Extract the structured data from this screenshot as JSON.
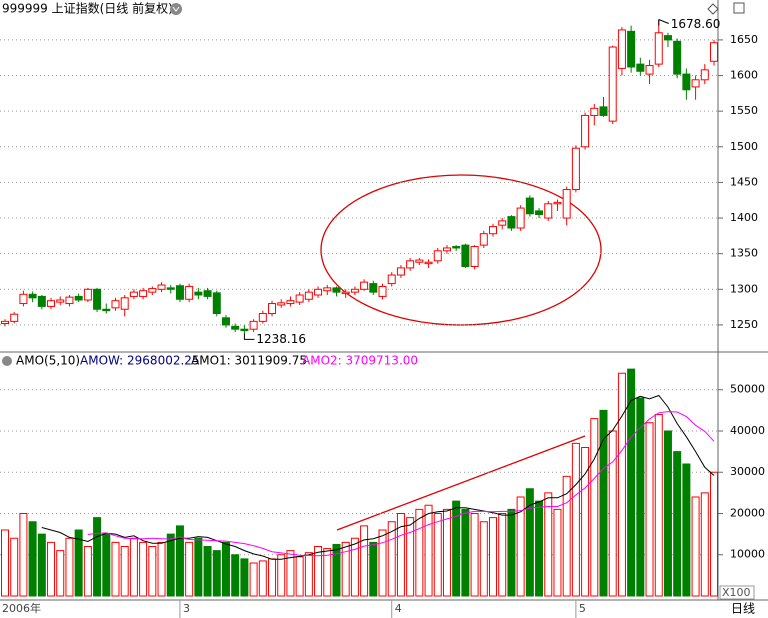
{
  "chart_data": [
    {
      "type": "candlestick",
      "title": "999999 上证指数(日线 前复权)",
      "categories": [
        "2006年",
        null,
        null,
        null,
        null,
        null,
        null,
        null,
        null,
        null,
        null,
        null,
        null,
        null,
        null,
        null,
        null,
        null,
        null,
        "3",
        null,
        null,
        null,
        null,
        null,
        null,
        null,
        null,
        null,
        null,
        null,
        null,
        null,
        null,
        null,
        null,
        null,
        null,
        null,
        null,
        null,
        null,
        "4",
        null,
        null,
        null,
        null,
        null,
        null,
        null,
        null,
        null,
        null,
        null,
        null,
        null,
        null,
        null,
        null,
        null,
        null,
        null,
        "5",
        null,
        null,
        null,
        null,
        null,
        null,
        null,
        null,
        null,
        null,
        null,
        null,
        null,
        null,
        null
      ],
      "ohlc": [
        [
          1252,
          1258,
          1248,
          1255
        ],
        [
          1255,
          1268,
          1252,
          1265
        ],
        [
          1280,
          1298,
          1276,
          1293
        ],
        [
          1293,
          1297,
          1282,
          1288
        ],
        [
          1290,
          1292,
          1272,
          1276
        ],
        [
          1276,
          1288,
          1272,
          1284
        ],
        [
          1282,
          1290,
          1278,
          1285
        ],
        [
          1280,
          1292,
          1276,
          1289
        ],
        [
          1290,
          1294,
          1282,
          1285
        ],
        [
          1285,
          1302,
          1282,
          1300
        ],
        [
          1300,
          1302,
          1268,
          1272
        ],
        [
          1272,
          1280,
          1266,
          1270
        ],
        [
          1274,
          1288,
          1270,
          1284
        ],
        [
          1272,
          1292,
          1262,
          1288
        ],
        [
          1290,
          1300,
          1286,
          1296
        ],
        [
          1290,
          1302,
          1286,
          1298
        ],
        [
          1296,
          1304,
          1292,
          1301
        ],
        [
          1300,
          1310,
          1296,
          1306
        ],
        [
          1302,
          1306,
          1294,
          1300
        ],
        [
          1305,
          1308,
          1282,
          1286
        ],
        [
          1286,
          1308,
          1282,
          1304
        ],
        [
          1296,
          1302,
          1286,
          1292
        ],
        [
          1298,
          1302,
          1286,
          1290
        ],
        [
          1295,
          1298,
          1262,
          1266
        ],
        [
          1260,
          1264,
          1246,
          1250
        ],
        [
          1248,
          1252,
          1240,
          1244
        ],
        [
          1244,
          1250,
          1238.16,
          1242
        ],
        [
          1244,
          1258,
          1240,
          1255
        ],
        [
          1255,
          1270,
          1252,
          1266
        ],
        [
          1266,
          1284,
          1262,
          1280
        ],
        [
          1278,
          1286,
          1274,
          1281
        ],
        [
          1280,
          1290,
          1276,
          1284
        ],
        [
          1282,
          1296,
          1278,
          1292
        ],
        [
          1286,
          1300,
          1282,
          1296
        ],
        [
          1292,
          1304,
          1288,
          1300
        ],
        [
          1298,
          1306,
          1292,
          1302
        ],
        [
          1302,
          1304,
          1290,
          1296
        ],
        [
          1294,
          1300,
          1288,
          1296
        ],
        [
          1296,
          1304,
          1292,
          1300
        ],
        [
          1300,
          1314,
          1298,
          1310
        ],
        [
          1308,
          1312,
          1292,
          1296
        ],
        [
          1290,
          1308,
          1286,
          1304
        ],
        [
          1308,
          1324,
          1304,
          1320
        ],
        [
          1320,
          1334,
          1316,
          1330
        ],
        [
          1330,
          1344,
          1326,
          1340
        ],
        [
          1338,
          1344,
          1334,
          1341
        ],
        [
          1336,
          1342,
          1330,
          1338
        ],
        [
          1340,
          1358,
          1336,
          1354
        ],
        [
          1354,
          1362,
          1350,
          1358
        ],
        [
          1360,
          1362,
          1354,
          1358
        ],
        [
          1362,
          1364,
          1330,
          1332
        ],
        [
          1332,
          1362,
          1328,
          1360
        ],
        [
          1362,
          1382,
          1358,
          1378
        ],
        [
          1378,
          1392,
          1374,
          1388
        ],
        [
          1390,
          1400,
          1384,
          1396
        ],
        [
          1402,
          1404,
          1382,
          1386
        ],
        [
          1386,
          1418,
          1382,
          1414
        ],
        [
          1428,
          1432,
          1402,
          1406
        ],
        [
          1410,
          1414,
          1400,
          1405
        ],
        [
          1400,
          1424,
          1396,
          1420
        ],
        [
          1420,
          1426,
          1410,
          1422
        ],
        [
          1400,
          1444,
          1390,
          1440
        ],
        [
          1440,
          1502,
          1436,
          1498
        ],
        [
          1500,
          1548,
          1496,
          1544
        ],
        [
          1544,
          1560,
          1530,
          1554
        ],
        [
          1556,
          1570,
          1542,
          1544
        ],
        [
          1536,
          1642,
          1532,
          1640
        ],
        [
          1610,
          1668,
          1600,
          1664
        ],
        [
          1662,
          1670,
          1604,
          1612
        ],
        [
          1616,
          1625,
          1600,
          1606
        ],
        [
          1602,
          1622,
          1588,
          1614
        ],
        [
          1616,
          1678.6,
          1612,
          1660
        ],
        [
          1656,
          1660,
          1640,
          1650
        ],
        [
          1648,
          1652,
          1596,
          1602
        ],
        [
          1602,
          1610,
          1566,
          1580
        ],
        [
          1584,
          1600,
          1566,
          1594
        ],
        [
          1594,
          1616,
          1588,
          1608
        ],
        [
          1620,
          1650,
          1614,
          1646
        ]
      ],
      "high_label": "1678.60",
      "low_label": "1238.16",
      "up_color": "#ff0000",
      "down_color": "#008000",
      "ylim": [
        1212,
        1706
      ],
      "yticks": [
        1250,
        1300,
        1350,
        1400,
        1450,
        1500,
        1550,
        1600,
        1650
      ],
      "grid": true,
      "period_label": "日线"
    },
    {
      "type": "volume",
      "indicator": "AMO(5,10)",
      "readouts": [
        "AMOW: 2968002.25",
        "AMO1: 3011909.75",
        "AMO2: 3709713.00"
      ],
      "unit_label": "X100",
      "values": [
        16000,
        14000,
        20000,
        18000,
        15000,
        13000,
        11000,
        14000,
        16000,
        12000,
        19000,
        15000,
        13000,
        12000,
        14000,
        13000,
        12000,
        13000,
        15000,
        17000,
        13000,
        14000,
        12000,
        11000,
        13000,
        10000,
        9000,
        8000,
        8500,
        9000,
        10000,
        11000,
        9500,
        10500,
        12000,
        11500,
        12500,
        13000,
        14000,
        17000,
        13000,
        16000,
        18000,
        20000,
        19000,
        21000,
        22000,
        20000,
        21000,
        23000,
        21000,
        20000,
        18000,
        19000,
        20000,
        21000,
        24000,
        26000,
        23000,
        25000,
        21000,
        29000,
        37000,
        36000,
        43000,
        45000,
        40000,
        54000,
        55000,
        48000,
        42000,
        44000,
        40000,
        35000,
        32000,
        24000,
        25000,
        30000
      ],
      "series": [
        {
          "name": "AMO1",
          "color": "#000000",
          "values": [
            null,
            null,
            null,
            null,
            16600,
            16000,
            15400,
            14200,
            13800,
            13200,
            14400,
            15200,
            15000,
            14200,
            14600,
            13400,
            12800,
            12800,
            13400,
            14000,
            14000,
            14400,
            14200,
            13400,
            12600,
            12000,
            11000,
            10200,
            9700,
            8900,
            8900,
            9300,
            9600,
            10000,
            10600,
            10900,
            11200,
            11900,
            12600,
            13600,
            13900,
            14600,
            15600,
            16800,
            17200,
            18800,
            20000,
            20400,
            20600,
            21400,
            21400,
            21000,
            20600,
            20200,
            19600,
            19600,
            20400,
            22000,
            22800,
            23800,
            23800,
            24800,
            27000,
            29600,
            33200,
            38000,
            40200,
            43600,
            47400,
            48400,
            47800,
            48600,
            45800,
            41800,
            38600,
            35000,
            31200,
            29200
          ]
        },
        {
          "name": "AMO2",
          "color": "#ff00ff",
          "values": [
            null,
            null,
            null,
            null,
            null,
            null,
            null,
            null,
            null,
            14900,
            15200,
            15300,
            14600,
            14000,
            13900,
            13900,
            14000,
            13900,
            13800,
            14300,
            13700,
            13600,
            13500,
            13400,
            13300,
            13000,
            12700,
            12200,
            11550,
            10750,
            10450,
            10150,
            9900,
            9850,
            9750,
            9900,
            10250,
            10750,
            11300,
            12100,
            12400,
            12900,
            13750,
            14700,
            15400,
            16350,
            17300,
            18000,
            18700,
            19300,
            20100,
            20500,
            20500,
            20400,
            20500,
            20500,
            20700,
            21300,
            21500,
            21700,
            21700,
            22600,
            24500,
            26200,
            28500,
            30900,
            32500,
            35300,
            38500,
            40800,
            42900,
            44400,
            44700,
            44600,
            43500,
            41400,
            39900,
            37500
          ]
        }
      ],
      "ylim": [
        0,
        59150
      ],
      "yticks": [
        10000,
        20000,
        30000,
        40000,
        50000
      ],
      "grid": true
    }
  ]
}
